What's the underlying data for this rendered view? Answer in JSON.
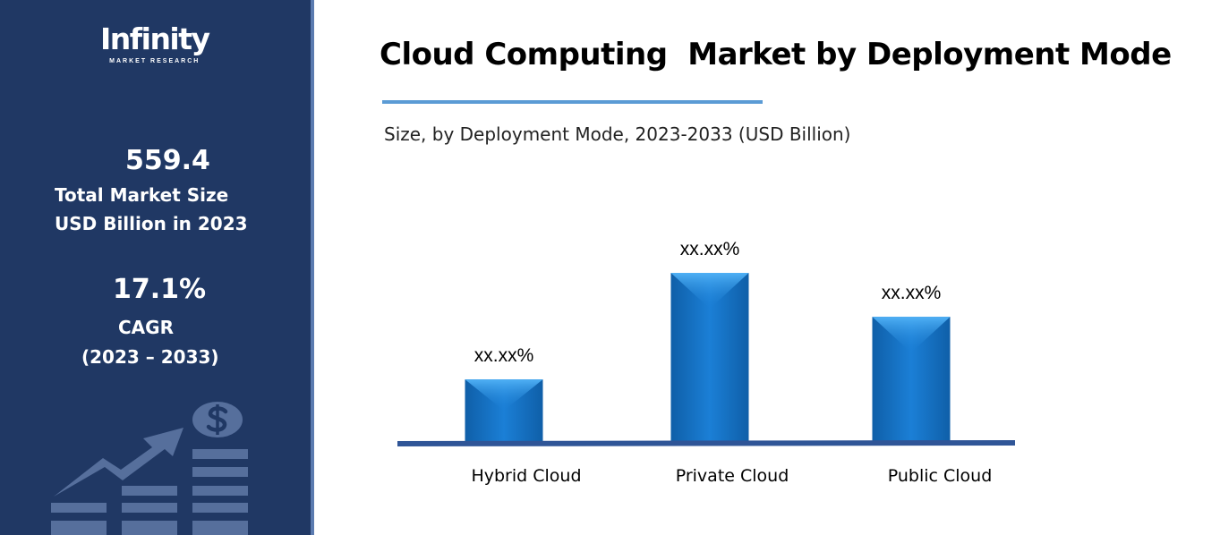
{
  "sidebar": {
    "logo": {
      "name": "Infinity",
      "tagline": "MARKET RESEARCH"
    },
    "market_size_value": "559.4",
    "market_size_label_1": "Total Market Size",
    "market_size_label_2": "USD Billion in 2023",
    "cagr_value": "17.1%",
    "cagr_label": "CAGR",
    "cagr_period": "(2023 – 2033)",
    "background_color": "#203864"
  },
  "chart_data": {
    "type": "bar",
    "title": "Cloud Computing  Market by Deployment Mode",
    "subtitle": "Size, by Deployment Mode, 2023-2033 (USD Billion)",
    "categories": [
      "Hybrid Cloud",
      "Private Cloud",
      "Public Cloud"
    ],
    "data_labels": [
      "xx.xx%",
      "xx.xx%",
      "xx.xx%"
    ],
    "relative_values_percent_of_max": [
      37,
      100,
      74
    ],
    "bar_color": "#1a75c7",
    "axis_color": "#2f5597",
    "grid": false,
    "legend": "none"
  }
}
